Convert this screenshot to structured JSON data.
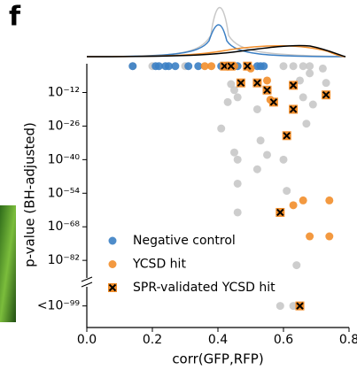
{
  "panel_label": "f",
  "chart_data": {
    "type": "scatter",
    "xlabel": "corr(GFP,RFP)",
    "ylabel": "p-value (BH-adjusted)",
    "xlim": [
      0,
      0.8
    ],
    "xticks": [
      {
        "value": 0,
        "label": "0.0"
      },
      {
        "value": 0.2,
        "label": "0.2"
      },
      {
        "value": 0.4,
        "label": "0.4"
      },
      {
        "value": 0.6,
        "label": "0.6"
      },
      {
        "value": 0.8,
        "label": "0.8"
      }
    ],
    "ylim": [
      -110,
      0
    ],
    "yticks": [
      {
        "value": -12,
        "label": "10⁻¹²"
      },
      {
        "value": -26,
        "label": "10⁻²⁶"
      },
      {
        "value": -40,
        "label": "10⁻⁴⁰"
      },
      {
        "value": -54,
        "label": "10⁻⁵⁴"
      },
      {
        "value": -68,
        "label": "10⁻⁶⁸"
      },
      {
        "value": -82,
        "label": "10⁻⁸²"
      },
      {
        "value": -101,
        "label": "<10⁻⁹⁹"
      }
    ],
    "series": [
      {
        "color": "#c8c8c8",
        "marker": "dot",
        "x": [
          0.14,
          0.2,
          0.3,
          0.43,
          0.6,
          0.63,
          0.66,
          0.68,
          0.72,
          0.44,
          0.45,
          0.46,
          0.43,
          0.52,
          0.53,
          0.41,
          0.45,
          0.55,
          0.46,
          0.46,
          0.46,
          0.52,
          0.6,
          0.61,
          0.67,
          0.66,
          0.69,
          0.73,
          0.65,
          0.68,
          0.59,
          0.63,
          0.64
        ],
        "values": [
          -1,
          -1,
          -1,
          -1,
          -1,
          -1,
          -1,
          -1,
          -2,
          -8.5,
          -11,
          -14,
          -16,
          -19,
          -32,
          -27,
          -37,
          -38,
          -40,
          -50,
          -62,
          -44,
          -40,
          -53,
          -25,
          -14,
          -17,
          -8,
          -7,
          -4,
          -101,
          -101,
          -84
        ]
      },
      {
        "name": "Negative control",
        "color": "#3b7fc4",
        "marker": "dot",
        "x": [
          0.14,
          0.21,
          0.22,
          0.24,
          0.25,
          0.27,
          0.31,
          0.34,
          0.41,
          0.42,
          0.46,
          0.52,
          0.53,
          0.54
        ],
        "values": [
          -1,
          -1,
          -1,
          -1,
          -1,
          -1,
          -1,
          -1,
          -1,
          -1,
          -1,
          -1,
          -1,
          -1
        ]
      },
      {
        "name": "YCSD hit",
        "color": "#f28e2b",
        "marker": "dot",
        "x": [
          0.36,
          0.38,
          0.45,
          0.5,
          0.55,
          0.56,
          0.63,
          0.66,
          0.68,
          0.74,
          0.74
        ],
        "values": [
          -1,
          -1,
          -1,
          -2,
          -7,
          -15,
          -59,
          -57,
          -72,
          -57,
          -72
        ]
      },
      {
        "name": "SPR-validated YCSD hit",
        "color": "#f28e2b",
        "marker": "cross",
        "x": [
          0.42,
          0.44,
          0.49,
          0.47,
          0.52,
          0.55,
          0.57,
          0.63,
          0.63,
          0.61,
          0.73,
          0.59,
          0.65
        ],
        "values": [
          -1,
          -1,
          -1,
          -8,
          -8,
          -11,
          -16,
          -9,
          -19,
          -30,
          -13,
          -62,
          -101
        ]
      }
    ]
  }
}
